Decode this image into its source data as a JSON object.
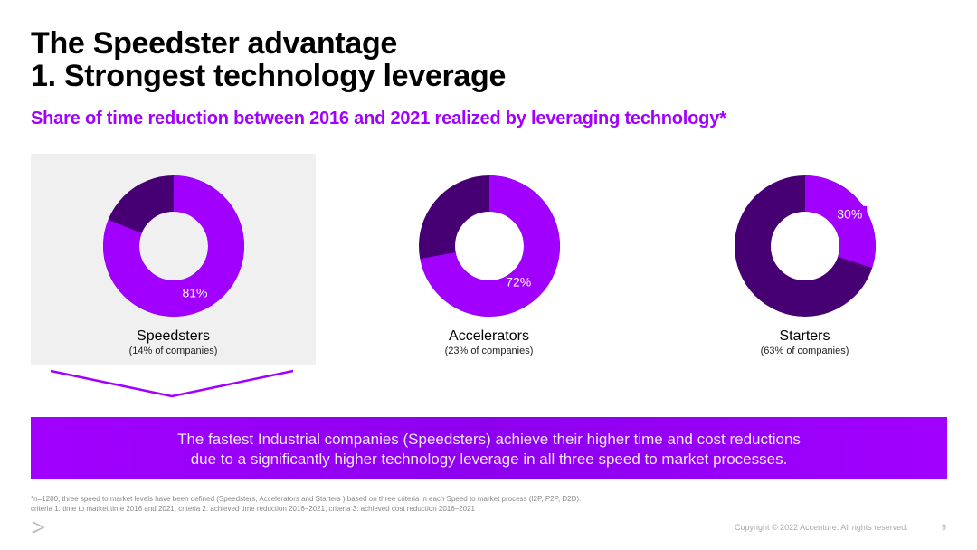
{
  "title_line1": "The Speedster advantage",
  "title_line2": "1. Strongest technology leverage",
  "subtitle": "Share of time reduction between 2016 and 2021 realized by leveraging technology*",
  "chart_data": {
    "type": "donut",
    "title": "Share of time reduction between 2016 and 2021 realized by leveraging technology*",
    "unit": "%",
    "charts": [
      {
        "name": "Speedsters",
        "note": "(14% of companies)",
        "value": 81,
        "label": "81%"
      },
      {
        "name": "Accelerators",
        "note": "(23% of companies)",
        "value": 72,
        "label": "72%"
      },
      {
        "name": "Starters",
        "note": "(63% of companies)",
        "value": 30,
        "label": "30%"
      }
    ]
  },
  "banner_line1": "The fastest Industrial companies (Speedsters) achieve their higher time and cost reductions",
  "banner_line2": "due to a significantly higher technology leverage in all three speed to market processes.",
  "footnote_line1": "*n=1200; three speed to market levels have been defined (Speedsters, Accelerators and Starters ) based on three criteria in each Speed to market process (I2P, P2P, D2D):",
  "footnote_line2": "criteria 1: time to market time 2016 and 2021, criteria 2: achieved time reduction 2016–2021, criteria 3: achieved cost reduction 2016–2021",
  "copyright": "Copyright © 2022 Accenture. All rights reserved.",
  "page_number": "9",
  "colors": {
    "accent": "#a100ff",
    "dark": "#460073",
    "highlight": "#f0f0f0"
  }
}
